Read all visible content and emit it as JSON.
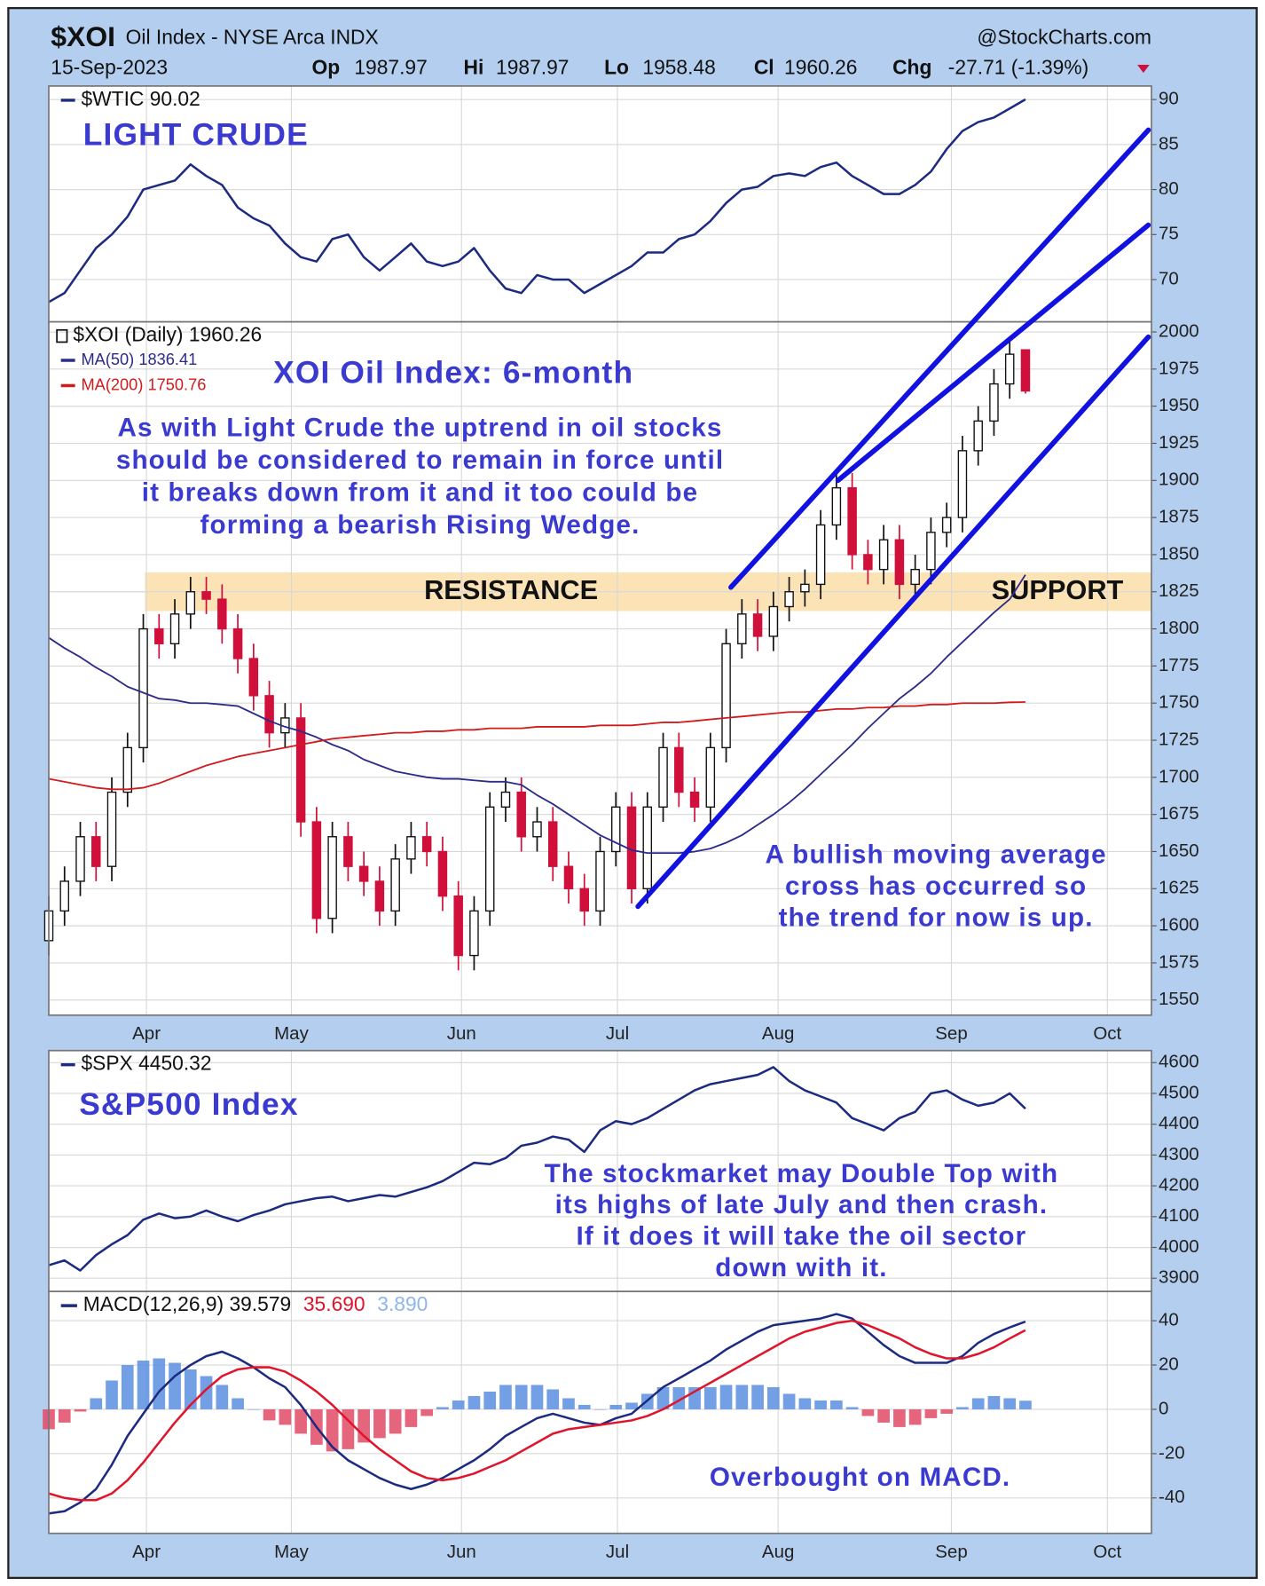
{
  "header": {
    "symbol": "$XOI",
    "name": "Oil Index - NYSE Arca INDX",
    "source": "@StockCharts.com",
    "date": "15-Sep-2023",
    "stats": [
      {
        "label": "Op",
        "value": "1987.97"
      },
      {
        "label": "Hi",
        "value": "1987.97"
      },
      {
        "label": "Lo",
        "value": "1958.48"
      },
      {
        "label": "Cl",
        "value": "1960.26"
      },
      {
        "label": "Chg",
        "value": "-27.71 (-1.39%)"
      }
    ]
  },
  "chart_data": [
    {
      "type": "line",
      "xlim": [
        0,
        70
      ],
      "xticks": [
        {
          "value": 6.2,
          "label": "Apr"
        },
        {
          "value": 15.4,
          "label": "May"
        },
        {
          "value": 26.2,
          "label": "Jun"
        },
        {
          "value": 36.1,
          "label": "Jul"
        },
        {
          "value": 46.3,
          "label": "Aug"
        },
        {
          "value": 57.3,
          "label": "Sep"
        },
        {
          "value": 67.2,
          "label": "Oct"
        }
      ],
      "ylim": [
        65.3,
        91.5
      ],
      "yticks": [
        70,
        75,
        80,
        85,
        90
      ],
      "grid": true,
      "series": [
        {
          "name": "$WTIC 90.02",
          "color": "#1c2a80",
          "values": [
            67.5,
            68.5,
            71,
            73.5,
            75,
            77,
            80,
            80.5,
            81,
            82.8,
            81.5,
            80.5,
            78,
            76.8,
            76,
            74,
            72.5,
            72,
            74.5,
            75,
            72.5,
            71,
            72.5,
            74,
            72,
            71.5,
            72,
            73.5,
            71,
            69,
            68.5,
            70.5,
            70,
            70,
            68.5,
            69.5,
            70.5,
            71.5,
            73,
            73,
            74.5,
            75,
            76.5,
            78.5,
            80,
            80.3,
            81.5,
            81.8,
            81.5,
            82.5,
            83,
            81.5,
            80.5,
            79.5,
            79.5,
            80.5,
            82,
            84.5,
            86.5,
            87.5,
            88,
            89,
            90.02
          ]
        }
      ],
      "annotations": [
        {
          "text": "LIGHT CRUDE"
        }
      ]
    },
    {
      "type": "candlestick",
      "name": "$XOI (Daily) 1960.26",
      "up_color": "#111111",
      "down_color": "#d0103a",
      "xlim": [
        0,
        70
      ],
      "xticks": [
        {
          "value": 6.2,
          "label": "Apr"
        },
        {
          "value": 15.4,
          "label": "May"
        },
        {
          "value": 26.2,
          "label": "Jun"
        },
        {
          "value": 36.1,
          "label": "Jul"
        },
        {
          "value": 46.3,
          "label": "Aug"
        },
        {
          "value": 57.3,
          "label": "Sep"
        },
        {
          "value": 67.2,
          "label": "Oct"
        }
      ],
      "x_labels": true,
      "ylim": [
        1539.8,
        2006.8
      ],
      "yticks": [
        1550,
        1575,
        1600,
        1625,
        1650,
        1675,
        1700,
        1725,
        1750,
        1775,
        1800,
        1825,
        1850,
        1875,
        1900,
        1925,
        1950,
        1975,
        2000
      ],
      "grid": true,
      "open": [
        1590,
        1610,
        1630,
        1660,
        1640,
        1690,
        1720,
        1800,
        1790,
        1810,
        1825,
        1820,
        1800,
        1780,
        1755,
        1730,
        1740,
        1670,
        1605,
        1660,
        1640,
        1630,
        1610,
        1645,
        1660,
        1650,
        1620,
        1580,
        1610,
        1680,
        1690,
        1660,
        1670,
        1640,
        1625,
        1610,
        1650,
        1680,
        1625,
        1680,
        1720,
        1690,
        1680,
        1720,
        1790,
        1810,
        1795,
        1815,
        1825,
        1830,
        1870,
        1895,
        1850,
        1840,
        1860,
        1830,
        1840,
        1865,
        1875,
        1920,
        1940,
        1965,
        1987.97
      ],
      "high": [
        1620,
        1640,
        1670,
        1670,
        1700,
        1730,
        1810,
        1810,
        1820,
        1835,
        1835,
        1830,
        1810,
        1790,
        1765,
        1750,
        1750,
        1680,
        1670,
        1670,
        1650,
        1640,
        1655,
        1670,
        1670,
        1660,
        1630,
        1620,
        1690,
        1700,
        1700,
        1680,
        1680,
        1650,
        1635,
        1660,
        1690,
        1690,
        1690,
        1730,
        1730,
        1700,
        1730,
        1800,
        1820,
        1820,
        1825,
        1835,
        1840,
        1880,
        1905,
        1905,
        1860,
        1870,
        1870,
        1850,
        1875,
        1885,
        1930,
        1950,
        1975,
        1995,
        1987.97
      ],
      "low": [
        1580,
        1600,
        1620,
        1630,
        1630,
        1680,
        1710,
        1780,
        1780,
        1800,
        1810,
        1790,
        1770,
        1745,
        1720,
        1720,
        1660,
        1595,
        1595,
        1630,
        1620,
        1600,
        1600,
        1635,
        1640,
        1610,
        1570,
        1570,
        1600,
        1670,
        1650,
        1650,
        1630,
        1615,
        1600,
        1600,
        1640,
        1615,
        1615,
        1670,
        1680,
        1670,
        1670,
        1710,
        1780,
        1785,
        1785,
        1805,
        1815,
        1820,
        1860,
        1840,
        1830,
        1830,
        1820,
        1820,
        1830,
        1855,
        1865,
        1910,
        1930,
        1955,
        1958.48
      ],
      "close": [
        1610,
        1630,
        1660,
        1640,
        1690,
        1720,
        1800,
        1790,
        1810,
        1825,
        1820,
        1800,
        1780,
        1755,
        1730,
        1740,
        1670,
        1605,
        1660,
        1640,
        1630,
        1610,
        1645,
        1660,
        1650,
        1620,
        1580,
        1610,
        1680,
        1690,
        1660,
        1670,
        1640,
        1625,
        1610,
        1650,
        1680,
        1625,
        1680,
        1720,
        1690,
        1680,
        1720,
        1790,
        1810,
        1795,
        1815,
        1825,
        1830,
        1870,
        1895,
        1850,
        1840,
        1860,
        1830,
        1840,
        1865,
        1875,
        1920,
        1940,
        1965,
        1985,
        1960.26
      ],
      "series": [
        {
          "name": "MA(50) 1836.41",
          "color": "#2b2b8a",
          "values": [
            1794,
            1787,
            1781,
            1774,
            1768,
            1761,
            1757,
            1753,
            1752,
            1750,
            1750,
            1749,
            1748,
            1743,
            1738,
            1734,
            1731,
            1727,
            1722,
            1718,
            1712,
            1708,
            1704,
            1702,
            1700,
            1699,
            1699,
            1698,
            1697,
            1697,
            1695,
            1688,
            1682,
            1675,
            1668,
            1661,
            1656,
            1651,
            1649,
            1649,
            1649,
            1650,
            1652,
            1656,
            1661,
            1668,
            1675,
            1683,
            1692,
            1702,
            1712,
            1722,
            1733,
            1743,
            1753,
            1761,
            1770,
            1781,
            1791,
            1801,
            1811,
            1820,
            1836.41
          ]
        },
        {
          "name": "MA(200) 1750.76",
          "color": "#d01c1c",
          "values": [
            1699,
            1697,
            1695,
            1693,
            1692,
            1692,
            1693,
            1696,
            1700,
            1704,
            1708,
            1711,
            1714,
            1716,
            1718,
            1720,
            1722,
            1724,
            1726,
            1727,
            1728,
            1729,
            1730,
            1730,
            1731,
            1731,
            1732,
            1732,
            1733,
            1733,
            1733,
            1734,
            1734,
            1734,
            1734,
            1735,
            1735,
            1735,
            1736,
            1737,
            1737,
            1738,
            1739,
            1740,
            1741,
            1742,
            1743,
            1744,
            1744,
            1745,
            1746,
            1746,
            1747,
            1747,
            1748,
            1748,
            1749,
            1749,
            1750,
            1750,
            1750,
            1750.5,
            1750.76
          ]
        }
      ],
      "band": {
        "ylim": [
          1812,
          1838
        ],
        "color": "#fbe3b6",
        "labels": [
          "RESISTANCE",
          "SUPPORT"
        ]
      },
      "trendlines": [
        {
          "x": [
            43.3,
            69.8
          ],
          "y": [
            1828,
            2136
          ],
          "color": "#1212e0"
        },
        {
          "x": [
            50.1,
            69.8
          ],
          "y": [
            1900,
            2072
          ],
          "color": "#1212e0"
        },
        {
          "x": [
            37.4,
            69.8
          ],
          "y": [
            1613,
            1996.6
          ],
          "color": "#1212e0"
        }
      ],
      "annotations": [
        {
          "text": "XOI Oil Index: 6-month"
        },
        {
          "lines": [
            "As with Light Crude the uptrend in oil stocks",
            "should be considered to remain in force until",
            "it breaks down from it and it too could be",
            "forming a bearish Rising Wedge."
          ]
        },
        {
          "lines": [
            "A bullish moving average",
            "cross has occurred so",
            "the trend for now is up."
          ]
        }
      ]
    },
    {
      "type": "line",
      "xlim": [
        0,
        70
      ],
      "xticks": [
        {
          "value": 6.2,
          "label": "Apr"
        },
        {
          "value": 15.4,
          "label": "May"
        },
        {
          "value": 26.2,
          "label": "Jun"
        },
        {
          "value": 36.1,
          "label": "Jul"
        },
        {
          "value": 46.3,
          "label": "Aug"
        },
        {
          "value": 57.3,
          "label": "Sep"
        },
        {
          "value": 67.2,
          "label": "Oct"
        }
      ],
      "ylim": [
        3857,
        4639
      ],
      "yticks": [
        3900,
        4000,
        4100,
        4200,
        4300,
        4400,
        4500,
        4600
      ],
      "grid": true,
      "series": [
        {
          "name": "$SPX 4450.32",
          "color": "#1c2a80",
          "values": [
            3942,
            3958,
            3925,
            3975,
            4010,
            4040,
            4090,
            4110,
            4095,
            4100,
            4120,
            4100,
            4085,
            4105,
            4120,
            4140,
            4150,
            4160,
            4165,
            4150,
            4160,
            4170,
            4165,
            4180,
            4195,
            4215,
            4245,
            4275,
            4270,
            4290,
            4330,
            4340,
            4360,
            4350,
            4310,
            4380,
            4410,
            4400,
            4420,
            4450,
            4480,
            4510,
            4530,
            4540,
            4550,
            4560,
            4585,
            4540,
            4510,
            4490,
            4470,
            4420,
            4400,
            4380,
            4420,
            4440,
            4500,
            4510,
            4480,
            4460,
            4470,
            4500,
            4450.32
          ]
        }
      ],
      "annotations": [
        {
          "text": "S&P500 Index"
        },
        {
          "lines": [
            "The stockmarket may Double Top with",
            "its highs of late July and then crash.",
            "If it does it will take the oil sector",
            "down with it."
          ]
        }
      ]
    },
    {
      "type": "macd",
      "xlim": [
        0,
        70
      ],
      "xticks": [
        {
          "value": 6.2,
          "label": "Apr"
        },
        {
          "value": 15.4,
          "label": "May"
        },
        {
          "value": 26.2,
          "label": "Jun"
        },
        {
          "value": 36.1,
          "label": "Jul"
        },
        {
          "value": 46.3,
          "label": "Aug"
        },
        {
          "value": 57.3,
          "label": "Sep"
        },
        {
          "value": 67.2,
          "label": "Oct"
        }
      ],
      "x_labels": true,
      "ylim": [
        -56,
        53.2
      ],
      "yticks": [
        -40,
        -20,
        0,
        20,
        40
      ],
      "grid": true,
      "series": [
        {
          "name": "MACD(12,26,9) 39.579",
          "color": "#1c2a80",
          "values": [
            -47,
            -46,
            -42,
            -36,
            -25,
            -12,
            -2,
            8,
            15,
            20,
            24,
            26,
            23,
            19,
            14,
            10,
            2,
            -8,
            -17,
            -23,
            -27,
            -31,
            -34,
            -36,
            -34,
            -31,
            -27,
            -23,
            -18,
            -12,
            -8,
            -4,
            -2,
            -4,
            -6,
            -7,
            -4,
            -2,
            4,
            10,
            14,
            18,
            22,
            27,
            31,
            35,
            38,
            39,
            40,
            41,
            43,
            41,
            35,
            29,
            24,
            21,
            21,
            21,
            24,
            30,
            34,
            37,
            39.579
          ]
        },
        {
          "name": "35.690",
          "color": "#e0142a",
          "values": [
            -38,
            -40,
            -41,
            -41,
            -38,
            -32,
            -24,
            -15,
            -6,
            2,
            9,
            15,
            18,
            19,
            19,
            17,
            13,
            8,
            2,
            -5,
            -12,
            -18,
            -23,
            -28,
            -31,
            -32,
            -31,
            -29,
            -26,
            -23,
            -19,
            -15,
            -11,
            -9,
            -8,
            -7,
            -6,
            -5,
            -3,
            0,
            4,
            8,
            12,
            16,
            20,
            24,
            28,
            32,
            35,
            37,
            39,
            40,
            38,
            35,
            32,
            28,
            25,
            23,
            23,
            25,
            28,
            32,
            35.69
          ]
        }
      ],
      "histogram": {
        "name": "3.890",
        "color": "#5a8ee0",
        "neg_color": "#e04a66",
        "values": [
          -9,
          -6,
          -1,
          5,
          13,
          20,
          22,
          23,
          21,
          18,
          15,
          11,
          5,
          0,
          -5,
          -7,
          -11,
          -16,
          -19,
          -18,
          -15,
          -13,
          -11,
          -8,
          -3,
          1,
          4,
          6,
          8,
          11,
          11,
          11,
          9,
          5,
          2,
          0,
          2,
          3,
          7,
          10,
          10,
          10,
          10,
          11,
          11,
          11,
          10,
          7,
          5,
          4,
          4,
          1,
          -3,
          -6,
          -8,
          -7,
          -4,
          -2,
          1,
          5,
          6,
          5,
          3.89
        ]
      },
      "annotations": [
        {
          "text": "Overbought on MACD."
        }
      ]
    }
  ]
}
